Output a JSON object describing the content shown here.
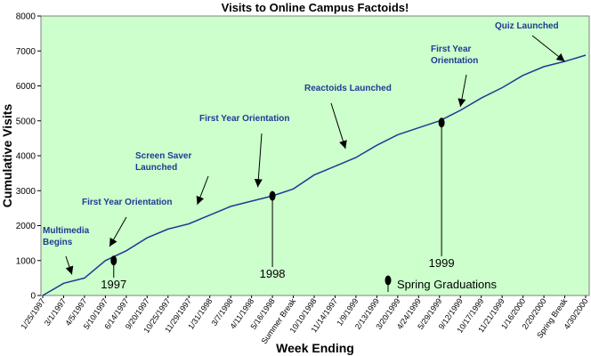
{
  "chart_data": {
    "type": "line",
    "title": "Visits to Online Campus Factoids!",
    "xlabel": "Week Ending",
    "ylabel": "Cumulative Visits",
    "ylim": [
      0,
      8000
    ],
    "yticks": [
      "0",
      "1000",
      "2000",
      "3000",
      "4000",
      "5000",
      "6000",
      "7000",
      "8000"
    ],
    "grid": false,
    "plot_background": "#ccffcc",
    "line_color": "#1f3a93",
    "annotation_color": "#1f3a93",
    "x_tick_labels": [
      "1/25/1997",
      "3/1/1997",
      "4/5/1997",
      "5/10/1997",
      "6/14/1997",
      "9/20/1997",
      "10/25/1997",
      "11/29/1997",
      "1/31/1998",
      "3/7/1998",
      "4/11/1998",
      "5/16/1998",
      "Summer Break",
      "10/10/1998",
      "11/14/1997",
      "1/9/1999",
      "2/13/1999",
      "3/20/1999",
      "4/24/1999",
      "5/29/1999",
      "9/12/1999",
      "10/17/1999",
      "11/21/1999",
      "1/16/2000",
      "2/20/2000",
      "Spring Break",
      "4/30/2000"
    ],
    "series": [
      {
        "values": [
          0,
          350,
          500,
          1000,
          1280,
          1650,
          1900,
          2050,
          2300,
          2550,
          2700,
          2850,
          3050,
          3450,
          3700,
          3950,
          4300,
          4600,
          4800,
          5000,
          5300,
          5650,
          5950,
          6300,
          6550,
          6700,
          6880
        ]
      }
    ],
    "annotations": [
      {
        "label": "Multimedia Begins",
        "x_index": 1.4,
        "y": 600
      },
      {
        "label": "First Year Orientation",
        "x_index": 3.2,
        "y": 1400
      },
      {
        "label": "Screen Saver Launched",
        "x_index": 7.4,
        "y": 2600
      },
      {
        "label": "First Year Orientation",
        "x_index": 10.3,
        "y": 3100
      },
      {
        "label": "Reactoids Launched",
        "x_index": 14.5,
        "y": 4200
      },
      {
        "label": "First Year Orientation",
        "x_index": 20.0,
        "y": 5400
      },
      {
        "label": "Quiz Launched",
        "x_index": 25.0,
        "y": 6700
      }
    ],
    "year_markers": [
      {
        "label": "1997",
        "x_index": 3.4,
        "y": 1000
      },
      {
        "label": "1998",
        "x_index": 11.0,
        "y": 2850
      },
      {
        "label": "1999",
        "x_index": 19.1,
        "y": 4950
      }
    ],
    "legend": {
      "label": "Spring Graduations",
      "placement": "bottom-center"
    }
  }
}
